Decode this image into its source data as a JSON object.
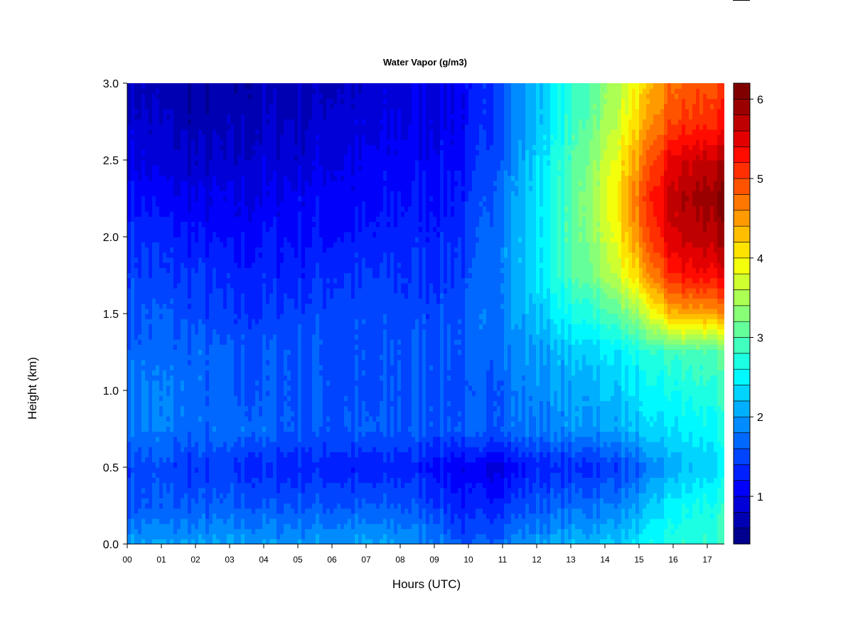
{
  "chart_data": {
    "type": "heatmap",
    "title": "Water Vapor (g/m3)",
    "xlabel": "Hours (UTC)",
    "ylabel": "Height (km)",
    "x_tick_labels": [
      "00",
      "01",
      "02",
      "03",
      "04",
      "05",
      "06",
      "07",
      "08",
      "09",
      "10",
      "11",
      "12",
      "13",
      "14",
      "15",
      "16",
      "17"
    ],
    "y_tick_labels": [
      "0.0",
      "0.5",
      "1.0",
      "1.5",
      "2.0",
      "2.5",
      "3.0"
    ],
    "xlim": [
      0,
      17.5
    ],
    "ylim": [
      0.0,
      3.0
    ],
    "colorbar": {
      "ticks": [
        "1",
        "2",
        "3",
        "4",
        "5",
        "6"
      ],
      "range": [
        0.4,
        6.2
      ],
      "levels": [
        0.4,
        0.6,
        0.8,
        1.0,
        1.2,
        1.4,
        1.6,
        1.8,
        2.0,
        2.2,
        2.4,
        2.6,
        2.8,
        3.0,
        3.2,
        3.4,
        3.6,
        3.8,
        4.0,
        4.2,
        4.4,
        4.6,
        4.8,
        5.0,
        5.2,
        5.4,
        5.6,
        5.8,
        6.0,
        6.2
      ],
      "colors": [
        "#00008f",
        "#0000b3",
        "#0000d7",
        "#0000fb",
        "#0020ff",
        "#0044ff",
        "#0068ff",
        "#008cff",
        "#00b0ff",
        "#00d4ff",
        "#00f8ff",
        "#1cffe3",
        "#40ffbf",
        "#64ff9b",
        "#88ff77",
        "#acff53",
        "#d0ff2f",
        "#f4ff0b",
        "#ffe300",
        "#ffbf00",
        "#ff9b00",
        "#ff7700",
        "#ff5300",
        "#ff2f00",
        "#ff0b00",
        "#e30000",
        "#bf0000",
        "#9b0000",
        "#800000"
      ]
    },
    "field": {
      "description_units": "g/m3",
      "x_hours": [
        0,
        1,
        2,
        3,
        4,
        5,
        6,
        7,
        8,
        9,
        10,
        11,
        12,
        13,
        14,
        15,
        16,
        17.5
      ],
      "heights_km": [
        0.0,
        0.25,
        0.5,
        0.75,
        1.0,
        1.25,
        1.5,
        1.75,
        2.0,
        2.25,
        2.5,
        2.75,
        3.0
      ],
      "values": [
        [
          2.0,
          2.0,
          2.0,
          2.0,
          2.0,
          2.0,
          2.0,
          2.0,
          2.0,
          1.9,
          1.5,
          1.8,
          2.0,
          2.1,
          2.2,
          2.4,
          2.7,
          2.8
        ],
        [
          1.6,
          1.6,
          1.6,
          1.6,
          1.6,
          1.6,
          1.6,
          1.6,
          1.6,
          1.5,
          1.2,
          1.4,
          1.6,
          1.7,
          1.8,
          2.0,
          2.5,
          2.7
        ],
        [
          1.5,
          1.5,
          1.4,
          1.4,
          1.3,
          1.3,
          1.3,
          1.2,
          1.3,
          1.2,
          1.0,
          1.0,
          1.3,
          1.3,
          1.4,
          1.6,
          2.1,
          2.4
        ],
        [
          1.8,
          1.8,
          1.7,
          1.7,
          1.7,
          1.6,
          1.6,
          1.6,
          1.6,
          1.6,
          1.6,
          1.7,
          1.8,
          1.9,
          2.0,
          2.2,
          2.4,
          2.6
        ],
        [
          1.8,
          1.8,
          1.7,
          1.6,
          1.6,
          1.6,
          1.6,
          1.5,
          1.6,
          1.6,
          1.5,
          1.7,
          1.9,
          2.0,
          2.2,
          2.4,
          2.6,
          2.8
        ],
        [
          1.7,
          1.7,
          1.7,
          1.6,
          1.6,
          1.6,
          1.6,
          1.5,
          1.6,
          1.6,
          1.6,
          1.8,
          2.0,
          2.2,
          2.4,
          2.6,
          2.9,
          3.0
        ],
        [
          1.6,
          1.6,
          1.5,
          1.4,
          1.4,
          1.5,
          1.5,
          1.5,
          1.5,
          1.5,
          1.6,
          1.9,
          2.2,
          2.6,
          2.9,
          3.4,
          4.4,
          4.5
        ],
        [
          1.5,
          1.4,
          1.4,
          1.3,
          1.3,
          1.3,
          1.4,
          1.4,
          1.4,
          1.4,
          1.5,
          1.9,
          2.4,
          2.9,
          3.4,
          4.2,
          5.2,
          5.4
        ],
        [
          1.4,
          1.3,
          1.2,
          1.1,
          1.2,
          1.2,
          1.2,
          1.2,
          1.3,
          1.3,
          1.4,
          1.9,
          2.4,
          3.0,
          3.6,
          4.6,
          5.6,
          5.8
        ],
        [
          1.2,
          1.1,
          1.0,
          1.0,
          1.0,
          1.1,
          1.1,
          1.1,
          1.2,
          1.2,
          1.3,
          1.8,
          2.4,
          3.0,
          3.7,
          4.8,
          5.7,
          6.0
        ],
        [
          1.0,
          0.9,
          0.8,
          0.8,
          0.9,
          0.9,
          1.0,
          1.0,
          1.1,
          1.1,
          1.2,
          1.7,
          2.3,
          2.9,
          3.6,
          4.5,
          5.5,
          5.7
        ],
        [
          0.9,
          0.8,
          0.7,
          0.7,
          0.8,
          0.8,
          0.9,
          0.9,
          1.0,
          1.0,
          1.1,
          1.6,
          2.2,
          2.8,
          3.4,
          4.2,
          5.0,
          5.2
        ],
        [
          0.8,
          0.7,
          0.6,
          0.6,
          0.7,
          0.7,
          0.8,
          0.8,
          0.9,
          1.0,
          1.1,
          1.6,
          2.2,
          2.7,
          3.3,
          4.0,
          4.8,
          5.0
        ]
      ]
    }
  }
}
